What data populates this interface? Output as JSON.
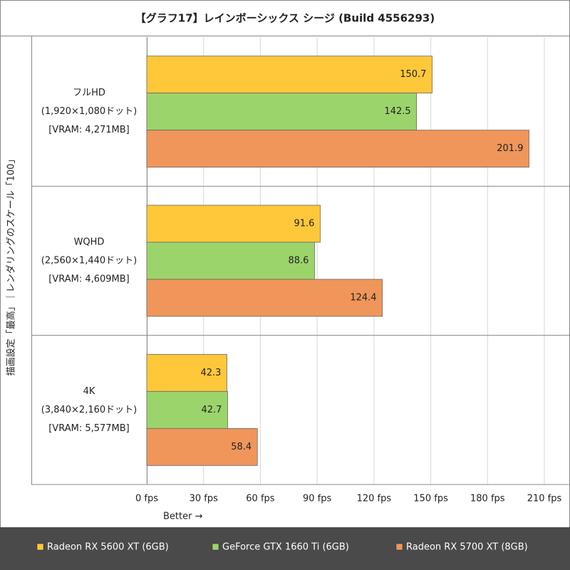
{
  "chart_data": {
    "type": "hbar",
    "title": "【グラフ17】レインボーシックス シージ (Build 4556293)",
    "y_label": "描画設定「最高」｜レンダリングのスケール「100」",
    "x_note": "Better →",
    "categories": [
      [
        "フルHD",
        "(1,920×1,080ドット)",
        "[VRAM: 4,271MB]"
      ],
      [
        "WQHD",
        "(2,560×1,440ドット)",
        "[VRAM: 4,609MB]"
      ],
      [
        "4K",
        "(3,840×2,160ドット)",
        "[VRAM: 5,577MB]"
      ]
    ],
    "series": [
      {
        "name": "Radeon RX 5600 XT (6GB)",
        "color": "#ffc83a",
        "values": [
          150.7,
          91.6,
          42.3
        ]
      },
      {
        "name": "GeForce GTX 1660 Ti (6GB)",
        "color": "#9cd46c",
        "values": [
          142.5,
          88.6,
          42.7
        ]
      },
      {
        "name": "Radeon RX 5700 XT (8GB)",
        "color": "#f0965a",
        "values": [
          201.9,
          124.4,
          58.4
        ]
      }
    ],
    "xlim": [
      0,
      210
    ],
    "xticks": [
      {
        "value": 0,
        "label": "0 fps"
      },
      {
        "value": 30,
        "label": "30 fps"
      },
      {
        "value": 60,
        "label": "60 fps"
      },
      {
        "value": 90,
        "label": "90 fps"
      },
      {
        "value": 120,
        "label": "120 fps"
      },
      {
        "value": 150,
        "label": "150 fps"
      },
      {
        "value": 180,
        "label": "180 fps"
      },
      {
        "value": 210,
        "label": "210 fps"
      }
    ],
    "grid": true,
    "legend": "bottom"
  }
}
